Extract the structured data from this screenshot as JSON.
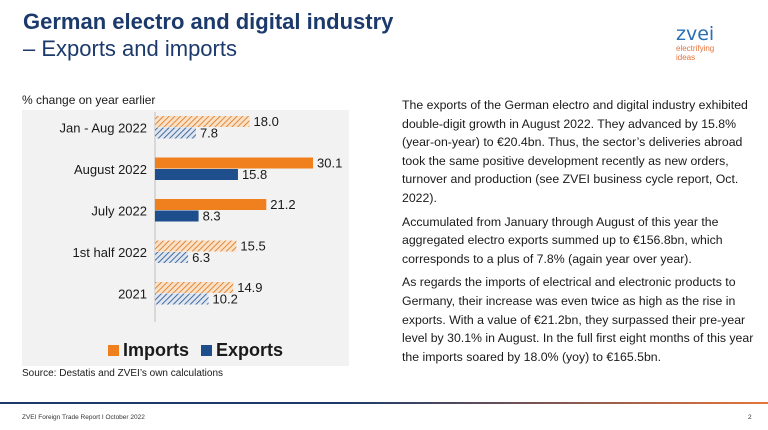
{
  "header": {
    "title_line1": "German electro and digital industry",
    "title_line2": "– Exports and imports"
  },
  "logo": {
    "word": "zvei",
    "tagline_line1": "electrifying",
    "tagline_line2": "ideas"
  },
  "chart_caption": "% change on year earlier",
  "chart_data": {
    "type": "bar",
    "orientation": "horizontal",
    "categories": [
      "Jan - Aug 2022",
      "August 2022",
      "July 2022",
      "1st half 2022",
      "2021"
    ],
    "series": [
      {
        "name": "Imports",
        "values": [
          18.0,
          30.1,
          21.2,
          15.5,
          14.9
        ],
        "labels": [
          "18.0",
          "30.1",
          "21.2",
          "15.5",
          "14.9"
        ],
        "hatched": [
          true,
          false,
          false,
          true,
          true
        ]
      },
      {
        "name": "Exports",
        "values": [
          7.8,
          15.8,
          8.3,
          6.3,
          10.2
        ],
        "labels": [
          "7.8",
          "15.8",
          "8.3",
          "6.3",
          "10.2"
        ],
        "hatched": [
          true,
          false,
          false,
          true,
          true
        ]
      }
    ],
    "xlim": [
      0,
      32
    ],
    "legend_position": "bottom",
    "grid": false,
    "colors": {
      "Imports": "#f07f1e",
      "Exports": "#1f4e8c"
    }
  },
  "source": "Source: Destatis and ZVEI’s own calculations",
  "paragraphs": [
    "The exports of the German electro and digital industry exhibited double-digit growth in August 2022. They advanced by 15.8% (year-on-year) to €20.4bn. Thus, the sector’s deliveries abroad took the same positive development recently as new orders, turnover and production (see ZVEI business cycle report, Oct. 2022).",
    "Accumulated from January through August of this year the aggregated electro exports summed up to €156.8bn, which corresponds to a plus of 7.8% (again year over year).",
    "As regards the imports of electrical and electronic products to Germany, their increase was even twice as high as the rise in exports. With a value of €21.2bn, they surpassed their pre-year level by 30.1% in August. In the full first eight months of this year the imports soared by 18.0% (yoy) to €165.5bn."
  ],
  "footer": {
    "left": "ZVEI Foreign Trade Report I October 2022",
    "page_number": "2"
  }
}
